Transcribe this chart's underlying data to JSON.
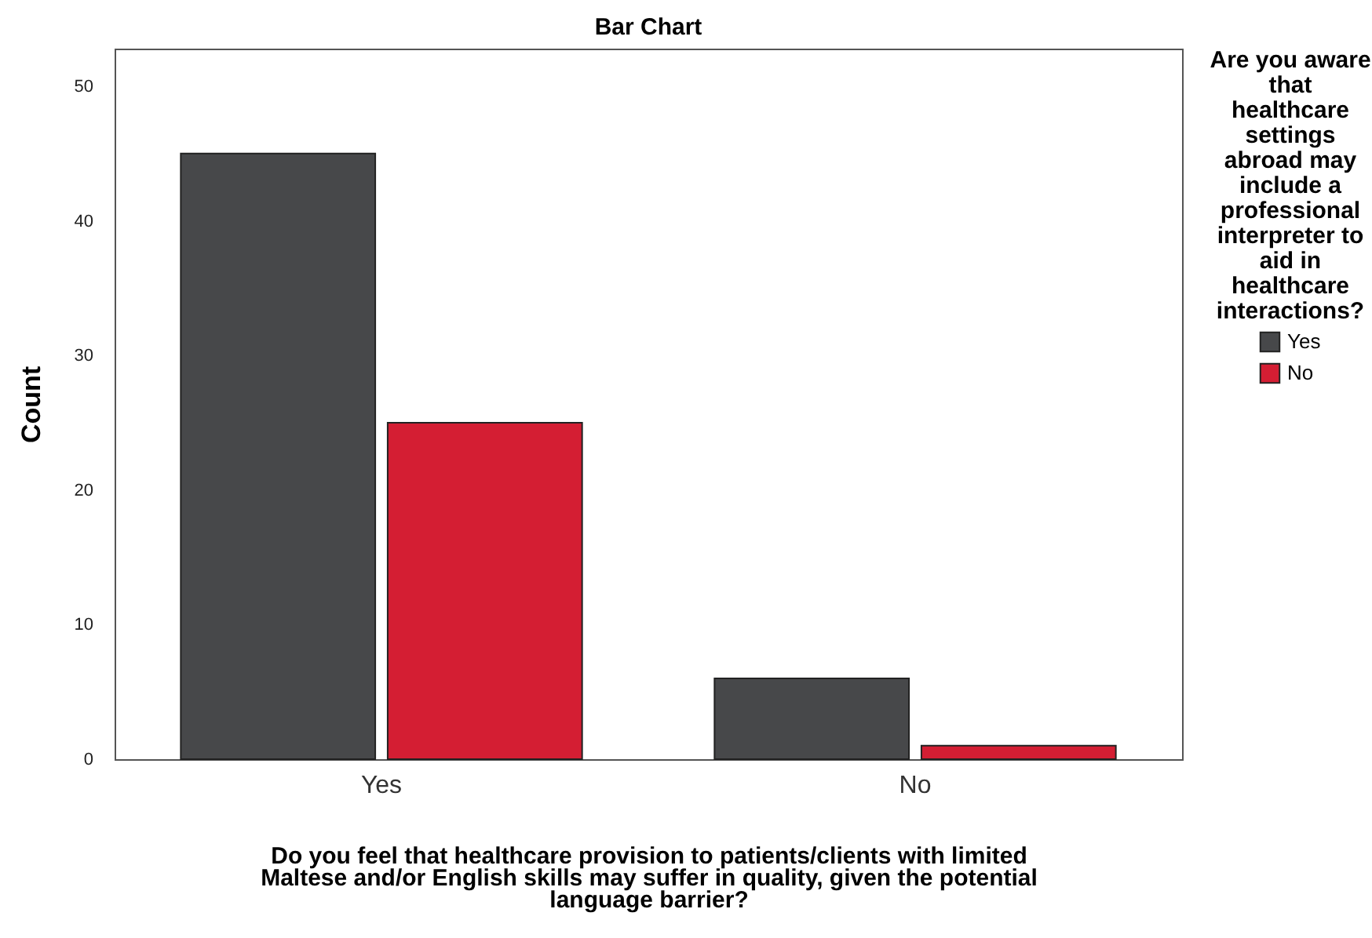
{
  "chart_data": {
    "type": "bar",
    "title": "Bar Chart",
    "xlabel": "Do you feel that healthcare provision to patients/clients with limited Maltese and/or English skills may suffer in quality, given the potential language barrier?",
    "ylabel": "Count",
    "legend_title": "Are you aware that healthcare settings abroad may include a professional interpreter to aid in healthcare interactions?",
    "categories": [
      "Yes",
      "No"
    ],
    "series": [
      {
        "name": "Yes",
        "color": "#47484a",
        "values": [
          45,
          6
        ]
      },
      {
        "name": "No",
        "color": "#d41e33",
        "values": [
          25,
          1
        ]
      }
    ],
    "ylim": [
      0,
      52.8
    ],
    "yticks": [
      0,
      10,
      20,
      30,
      40,
      50
    ],
    "grid": false,
    "legend": "right"
  }
}
